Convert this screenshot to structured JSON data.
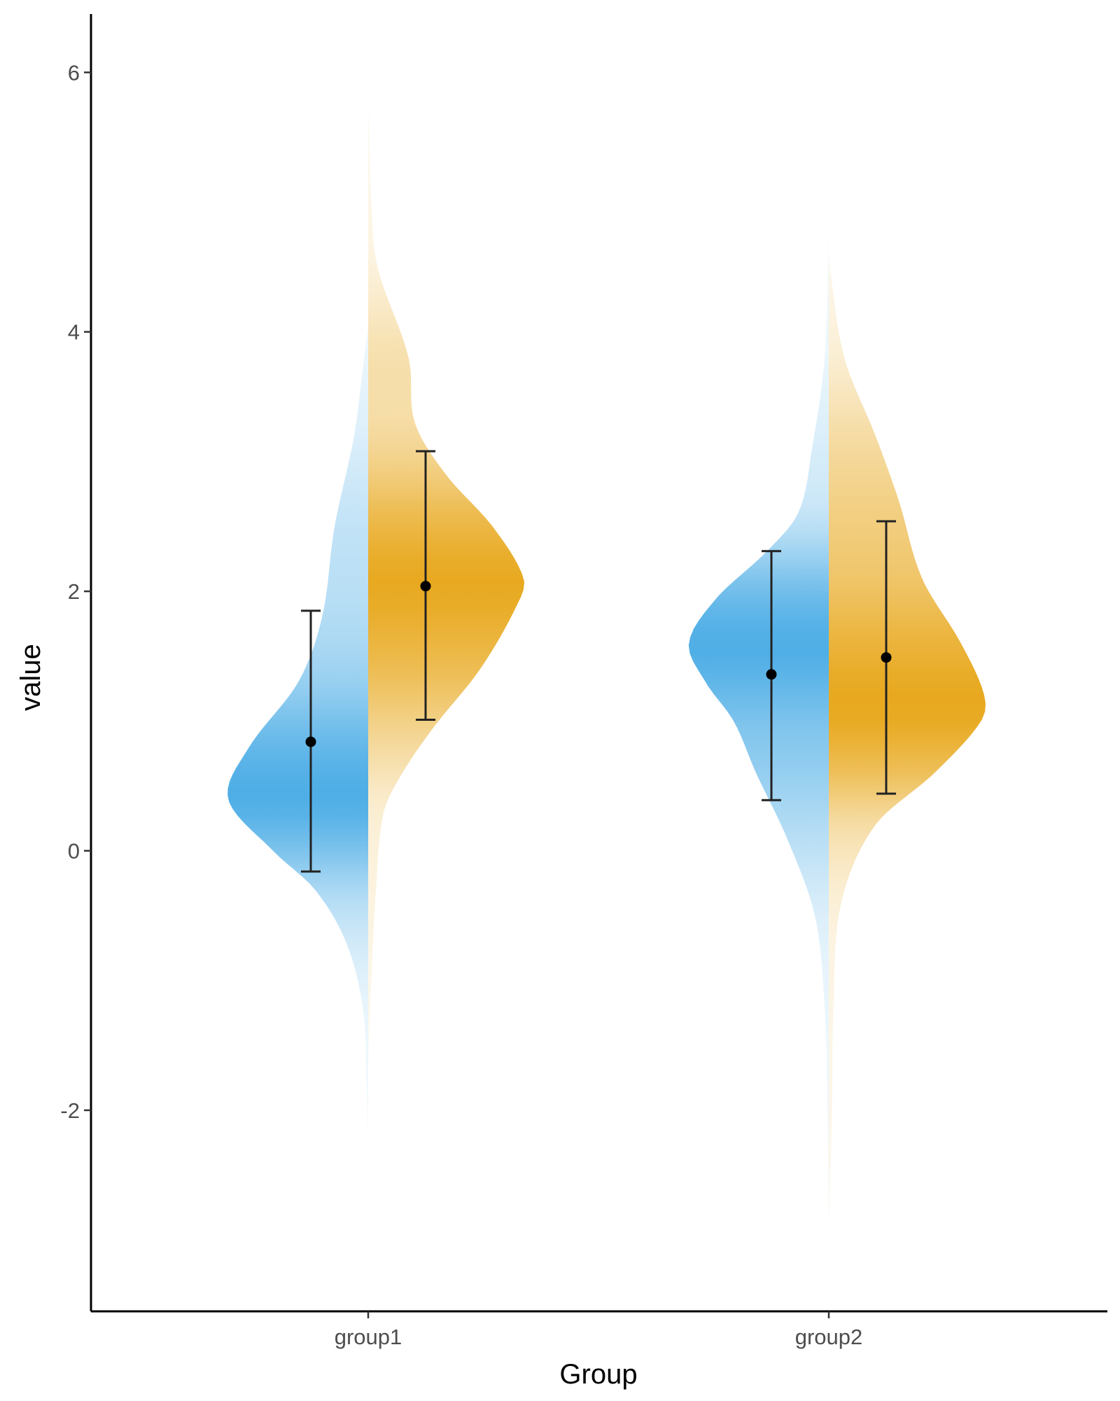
{
  "chart_data": {
    "type": "split-violin",
    "title": "",
    "xlabel": "Group",
    "ylabel": "value",
    "ylim": [
      -3.55,
      6.45
    ],
    "y_ticks": [
      -2,
      0,
      2,
      4,
      6
    ],
    "y_tick_labels": [
      "-2",
      "0",
      "2",
      "4",
      "6"
    ],
    "categories": [
      "group1",
      "group2"
    ],
    "grid": false,
    "legend": "none",
    "series": [
      {
        "side": "left",
        "color": "#4FAEE6",
        "groups": [
          {
            "category": "group1",
            "mean": 0.84,
            "err_low": -0.16,
            "err_high": 1.85,
            "density_range": [
              -2.25,
              4.05
            ],
            "density_profile": [
              [
                -2.25,
                0.0
              ],
              [
                -1.8,
                0.01
              ],
              [
                -1.2,
                0.04
              ],
              [
                -0.7,
                0.16
              ],
              [
                -0.3,
                0.38
              ],
              [
                0.0,
                0.68
              ],
              [
                0.4,
                1.0
              ],
              [
                0.8,
                0.85
              ],
              [
                1.3,
                0.5
              ],
              [
                1.8,
                0.33
              ],
              [
                2.5,
                0.24
              ],
              [
                3.2,
                0.1
              ],
              [
                3.7,
                0.04
              ],
              [
                4.05,
                0.0
              ]
            ]
          },
          {
            "category": "group2",
            "mean": 1.36,
            "err_low": 0.39,
            "err_high": 2.31,
            "density_range": [
              -2.85,
              4.75
            ],
            "density_profile": [
              [
                -2.85,
                0.0
              ],
              [
                -2.0,
                0.01
              ],
              [
                -1.2,
                0.03
              ],
              [
                -0.5,
                0.1
              ],
              [
                0.1,
                0.3
              ],
              [
                0.6,
                0.52
              ],
              [
                1.0,
                0.68
              ],
              [
                1.3,
                0.88
              ],
              [
                1.6,
                1.0
              ],
              [
                1.95,
                0.8
              ],
              [
                2.3,
                0.45
              ],
              [
                2.6,
                0.22
              ],
              [
                3.1,
                0.12
              ],
              [
                3.8,
                0.03
              ],
              [
                4.75,
                0.0
              ]
            ]
          }
        ]
      },
      {
        "side": "right",
        "color": "#E8A920",
        "groups": [
          {
            "category": "group1",
            "mean": 2.04,
            "err_low": 1.01,
            "err_high": 3.08,
            "density_range": [
              -1.6,
              5.75
            ],
            "density_profile": [
              [
                -1.6,
                0.0
              ],
              [
                -1.0,
                0.02
              ],
              [
                -0.3,
                0.05
              ],
              [
                0.3,
                0.1
              ],
              [
                0.6,
                0.22
              ],
              [
                0.95,
                0.42
              ],
              [
                1.4,
                0.72
              ],
              [
                1.9,
                0.96
              ],
              [
                2.1,
                1.0
              ],
              [
                2.5,
                0.8
              ],
              [
                2.9,
                0.5
              ],
              [
                3.3,
                0.3
              ],
              [
                3.8,
                0.26
              ],
              [
                4.5,
                0.06
              ],
              [
                5.0,
                0.02
              ],
              [
                5.75,
                0.0
              ]
            ]
          },
          {
            "category": "group2",
            "mean": 1.49,
            "err_low": 0.44,
            "err_high": 2.54,
            "density_range": [
              -2.9,
              4.55
            ],
            "density_profile": [
              [
                -2.9,
                0.0
              ],
              [
                -2.0,
                0.02
              ],
              [
                -1.2,
                0.03
              ],
              [
                -0.4,
                0.08
              ],
              [
                0.2,
                0.3
              ],
              [
                0.6,
                0.68
              ],
              [
                1.0,
                0.98
              ],
              [
                1.2,
                1.0
              ],
              [
                1.6,
                0.85
              ],
              [
                2.1,
                0.6
              ],
              [
                2.7,
                0.45
              ],
              [
                3.2,
                0.3
              ],
              [
                3.8,
                0.1
              ],
              [
                4.55,
                0.0
              ]
            ]
          }
        ]
      }
    ]
  }
}
